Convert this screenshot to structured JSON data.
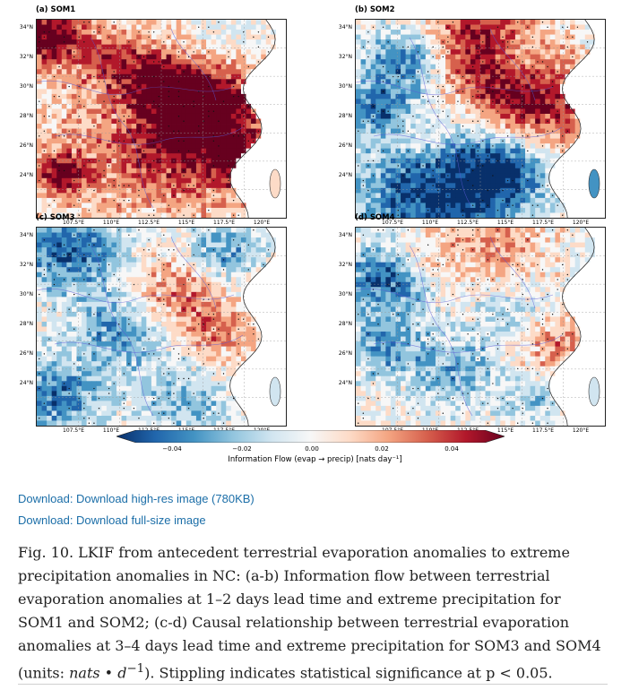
{
  "panels": [
    {
      "title": "(a) SOM1",
      "seed": 11,
      "bias": 0.55,
      "blobs": [
        [
          0.05,
          0.08,
          0.35,
          0.95
        ],
        [
          0.55,
          0.55,
          0.9,
          0.8
        ],
        [
          0.1,
          0.78,
          0.25,
          0.9
        ],
        [
          0.62,
          0.42,
          0.55,
          0.75
        ],
        [
          0.82,
          0.72,
          0.3,
          0.6
        ],
        [
          0.93,
          0.88,
          0.2,
          0.95
        ],
        [
          0.7,
          0.15,
          0.45,
          -0.35
        ],
        [
          0.4,
          0.48,
          0.35,
          -0.3
        ],
        [
          0.3,
          0.2,
          0.3,
          0.4
        ],
        [
          0.5,
          0.3,
          0.35,
          0.35
        ]
      ]
    },
    {
      "title": "(b) SOM2",
      "seed": 23,
      "bias": -0.05,
      "blobs": [
        [
          0.5,
          0.12,
          0.55,
          0.85
        ],
        [
          0.68,
          0.38,
          0.55,
          0.95
        ],
        [
          0.2,
          0.2,
          0.35,
          -0.8
        ],
        [
          0.1,
          0.45,
          0.3,
          -0.7
        ],
        [
          0.35,
          0.88,
          0.8,
          -1.0
        ],
        [
          0.58,
          0.75,
          0.35,
          -0.7
        ],
        [
          0.65,
          0.2,
          0.3,
          -0.5
        ],
        [
          0.9,
          0.55,
          0.35,
          0.3
        ],
        [
          0.25,
          0.6,
          0.3,
          0.35
        ],
        [
          0.96,
          0.86,
          0.15,
          -0.8
        ]
      ]
    },
    {
      "title": "(c) SOM3",
      "seed": 37,
      "bias": 0.05,
      "blobs": [
        [
          0.15,
          0.12,
          0.5,
          -0.8
        ],
        [
          0.75,
          0.12,
          0.35,
          -0.6
        ],
        [
          0.3,
          0.5,
          0.35,
          -0.5
        ],
        [
          0.08,
          0.85,
          0.45,
          -0.7
        ],
        [
          0.55,
          0.3,
          0.45,
          0.45
        ],
        [
          0.7,
          0.52,
          0.4,
          0.5
        ],
        [
          0.6,
          0.88,
          0.4,
          -0.45
        ],
        [
          0.92,
          0.88,
          0.15,
          -0.5
        ],
        [
          0.45,
          0.6,
          0.4,
          -0.3
        ]
      ]
    },
    {
      "title": "(d) SOM4",
      "seed": 53,
      "bias": 0.0,
      "blobs": [
        [
          0.12,
          0.25,
          0.4,
          -0.85
        ],
        [
          0.12,
          0.6,
          0.35,
          -0.6
        ],
        [
          0.4,
          0.72,
          0.4,
          -0.5
        ],
        [
          0.55,
          0.1,
          0.45,
          0.45
        ],
        [
          0.25,
          0.15,
          0.3,
          0.35
        ],
        [
          0.8,
          0.6,
          0.4,
          0.5
        ],
        [
          0.95,
          0.82,
          0.15,
          -0.95
        ],
        [
          0.62,
          0.45,
          0.35,
          -0.3
        ],
        [
          0.72,
          0.85,
          0.3,
          -0.4
        ]
      ]
    }
  ],
  "axes": {
    "lat_labels": [
      "34°N",
      "32°N",
      "30°N",
      "28°N",
      "26°N",
      "24°N"
    ],
    "lon_labels": [
      "107.5°E",
      "110°E",
      "112.5°E",
      "115°E",
      "117.5°E",
      "120°E"
    ]
  },
  "colorbar": {
    "ticks": [
      "−0.04",
      "−0.02",
      "0.00",
      "0.02",
      "0.04"
    ],
    "label": "Information Flow (evap → precip) [nats day⁻¹]",
    "colors": [
      "#08306b",
      "#2166ac",
      "#4393c3",
      "#92c5de",
      "#d1e5f0",
      "#f7f7f7",
      "#fddbc7",
      "#f4a582",
      "#d6604d",
      "#b2182b",
      "#67001f"
    ]
  },
  "links": {
    "highres": "Download: Download high-res image (780KB)",
    "fullsize": "Download: Download full-size image"
  },
  "caption": {
    "text1": "Fig. 10. LKIF from antecedent terrestrial evaporation anomalies to extreme precipitation anomalies in NC: (a-b) Information flow between terrestrial evaporation anomalies at 1–2 days lead time and extreme precipitation for SOM1 and SOM2; (c-d) Causal relationship between terrestrial evaporation anomalies at 3–4 days lead time and extreme precipitation for SOM3 and SOM4 (units: ",
    "math": "nats • d",
    "sup": "−1",
    "text2": "). Stippling indicates statistical significance at p <    0.05."
  }
}
